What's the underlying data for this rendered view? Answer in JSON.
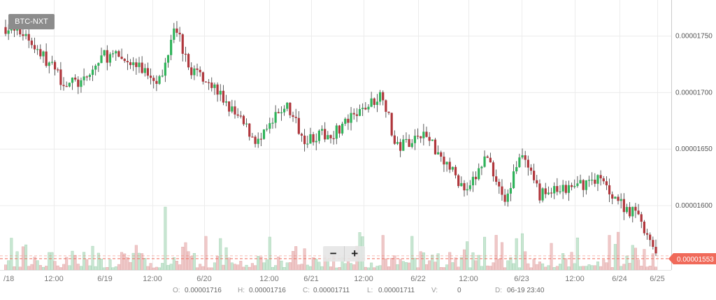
{
  "pair": "BTC-NXT",
  "zoom": {
    "minus": "−",
    "plus": "+"
  },
  "ohlc": {
    "o_label": "O:",
    "o": "0.00001716",
    "h_label": "H:",
    "h": "0.00001716",
    "c_label": "C:",
    "c": "0.00001711",
    "l_label": "L:",
    "l": "0.00001711",
    "v_label": "V:",
    "v": "0",
    "d_label": "D:",
    "d": "06-19 23:40"
  },
  "colors": {
    "up": "#2fb35a",
    "down": "#b0363c",
    "vol_up": "#c8e6d2",
    "vol_down": "#efc8c8",
    "grid": "#ececec",
    "current": "#f06a5a"
  },
  "chart_data": {
    "type": "candlestick",
    "pair": "BTC-NXT",
    "x_ticks": [
      "/18",
      "12:00",
      "6/19",
      "12:00",
      "6/20",
      "12:00",
      "6/21",
      "12:00",
      "6/22",
      "12:00",
      "6/23",
      "12:00",
      "6/24",
      "6/25"
    ],
    "y_ticks": [
      "0.00001750",
      "0.00001700",
      "0.00001650",
      "0.00001600"
    ],
    "y_tick_values": [
      1.75e-05,
      1.7e-05,
      1.65e-05,
      1.6e-05
    ],
    "current_price": "0.00001553",
    "current_value": 1.553e-05,
    "ylim": [
      1.543e-05,
      1.782e-05
    ],
    "anchors": [
      [
        0.0,
        1.758e-05
      ],
      [
        0.03,
        1.752e-05
      ],
      [
        0.09,
        1.709e-05
      ],
      [
        0.12,
        1.708e-05
      ],
      [
        0.15,
        1.733e-05
      ],
      [
        0.18,
        1.73e-05
      ],
      [
        0.24,
        1.711e-05
      ],
      [
        0.26,
        1.765e-05
      ],
      [
        0.28,
        1.722e-05
      ],
      [
        0.31,
        1.713e-05
      ],
      [
        0.35,
        1.682e-05
      ],
      [
        0.39,
        1.655e-05
      ],
      [
        0.43,
        1.69e-05
      ],
      [
        0.46,
        1.66e-05
      ],
      [
        0.5,
        1.663e-05
      ],
      [
        0.54,
        1.68e-05
      ],
      [
        0.58,
        1.7e-05
      ],
      [
        0.6,
        1.65e-05
      ],
      [
        0.64,
        1.665e-05
      ],
      [
        0.67,
        1.645e-05
      ],
      [
        0.71,
        1.61e-05
      ],
      [
        0.74,
        1.645e-05
      ],
      [
        0.77,
        1.602e-05
      ],
      [
        0.79,
        1.648e-05
      ],
      [
        0.82,
        1.61e-05
      ],
      [
        0.87,
        1.615e-05
      ],
      [
        0.91,
        1.625e-05
      ],
      [
        0.95,
        1.6e-05
      ],
      [
        0.975,
        1.59e-05
      ],
      [
        1.0,
        1.553e-05
      ]
    ],
    "n_candles": 225,
    "volume_spikes": [
      [
        0.245,
        1.0
      ],
      [
        0.03,
        0.6
      ],
      [
        0.33,
        0.5
      ],
      [
        0.46,
        0.5
      ],
      [
        0.58,
        0.55
      ],
      [
        0.71,
        0.45
      ],
      [
        0.93,
        0.55
      ],
      [
        0.84,
        0.35
      ]
    ]
  }
}
